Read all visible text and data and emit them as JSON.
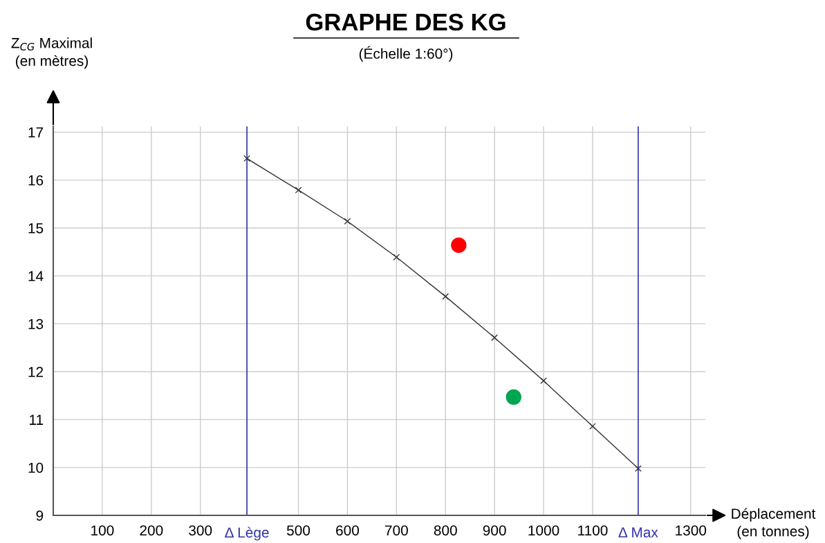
{
  "chart_data": {
    "type": "line",
    "title": "GRAPHE DES KG",
    "subtitle": "(Échelle 1:60°)",
    "xlabel": "Déplacement\n(en tonnes)",
    "ylabel": "Z$_{CG}$ Maximal\n(en mètres)",
    "x": [
      395,
      500,
      600,
      700,
      800,
      900,
      1000,
      1100,
      1193
    ],
    "series": [
      {
        "color": "#333333",
        "marker": "cross",
        "values": [
          16.45,
          15.79,
          15.14,
          14.39,
          13.57,
          12.71,
          11.81,
          10.86,
          9.98
        ]
      },
      {
        "type": "scatter",
        "color": "#ff0000",
        "marker": "circle",
        "x": [
          827
        ],
        "values": [
          14.64
        ]
      },
      {
        "type": "scatter",
        "color": "#00a651",
        "marker": "circle",
        "x": [
          939
        ],
        "values": [
          11.47
        ]
      }
    ],
    "xlim": [
      0,
      1330
    ],
    "ylim": [
      9,
      17.12
    ],
    "xticks": [
      100,
      200,
      300,
      500,
      600,
      700,
      800,
      900,
      1000,
      1100,
      1300
    ],
    "yticks": [
      9,
      10,
      11,
      12,
      13,
      14,
      15,
      16,
      17
    ],
    "ref_lines": [
      {
        "axis": "x",
        "value": 395,
        "label": "Δ Lège",
        "color": "#3333aa"
      },
      {
        "axis": "x",
        "value": 1193,
        "label": "Δ Max",
        "color": "#3333aa"
      }
    ],
    "grid": true
  }
}
